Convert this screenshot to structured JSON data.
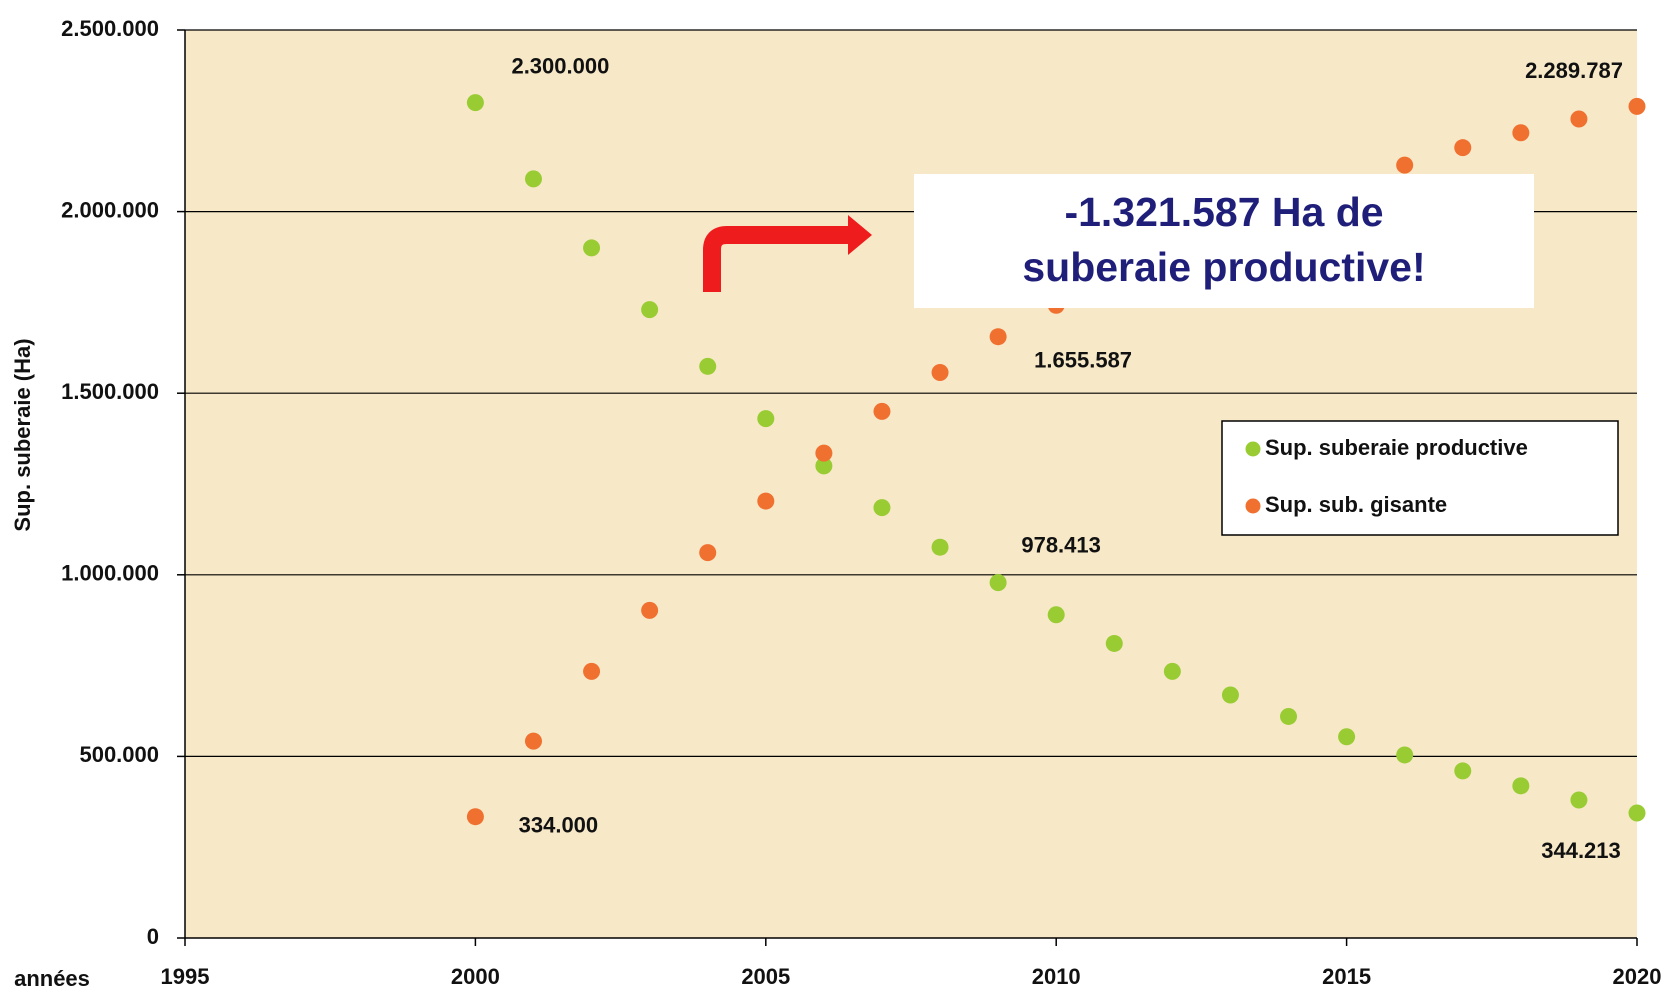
{
  "chart_data": {
    "type": "scatter",
    "y_label": "Sup. suberaie (Ha)",
    "x_label": "années",
    "x": [
      2000,
      2001,
      2002,
      2003,
      2004,
      2005,
      2006,
      2007,
      2008,
      2009,
      2010,
      2011,
      2012,
      2013,
      2014,
      2015,
      2016,
      2017,
      2018,
      2019,
      2020
    ],
    "series": [
      {
        "name": "Sup. suberaie productive",
        "color": "#99cc33",
        "values": [
          2300000,
          2090000,
          1900000,
          1730000,
          1574000,
          1430000,
          1300000,
          1185000,
          1076000,
          978413,
          890000,
          811000,
          734000,
          669000,
          610000,
          554000,
          504000,
          460000,
          419000,
          380000,
          344213
        ],
        "value_labels": [
          "2.300.000",
          null,
          null,
          null,
          null,
          null,
          null,
          null,
          null,
          "978.413",
          null,
          null,
          null,
          null,
          null,
          null,
          null,
          null,
          null,
          null,
          "344.213"
        ]
      },
      {
        "name": "Sup. sub. gisante",
        "color": "#f07030",
        "values": [
          334000,
          542000,
          734000,
          902000,
          1061000,
          1203000,
          1335000,
          1450000,
          1557000,
          1655587,
          1742000,
          null,
          null,
          null,
          null,
          null,
          2128000,
          2176000,
          2217000,
          2255000,
          2289787
        ],
        "value_labels": [
          "334.000",
          null,
          null,
          null,
          null,
          null,
          null,
          null,
          null,
          "1.655.587",
          null,
          null,
          null,
          null,
          null,
          null,
          null,
          null,
          null,
          null,
          "2.289.787"
        ]
      }
    ],
    "annotation": [
      "-1.321.587 Ha de",
      "suberaie productive!"
    ],
    "xlim": [
      1995,
      2020
    ],
    "xticks": [
      1995,
      2000,
      2005,
      2010,
      2015,
      2020
    ],
    "ylim": [
      0,
      2500000
    ],
    "yticks": [
      0,
      {
        "value": 500000,
        "label": "500.000"
      },
      {
        "value": 1000000,
        "label": "1.000.000"
      },
      {
        "value": 1500000,
        "label": "1.500.000"
      },
      {
        "value": 2000000,
        "label": "2.000.000"
      },
      {
        "value": 2500000,
        "label": "2.500.000"
      }
    ],
    "grid": true,
    "legend": "right"
  }
}
